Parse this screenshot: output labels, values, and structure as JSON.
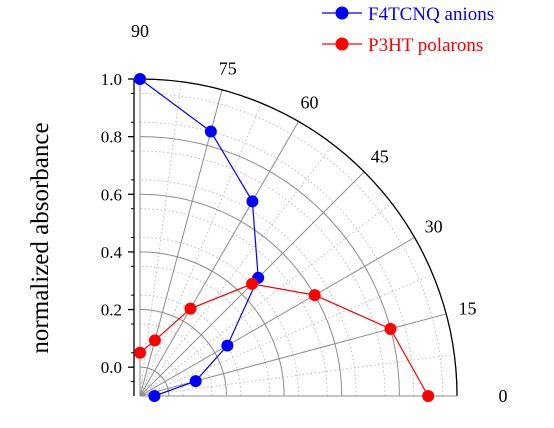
{
  "chart_data": {
    "type": "scatter",
    "coordinate_system": "polar",
    "angle_unit": "degrees",
    "angle_range": [
      0,
      90
    ],
    "radial_axis_label": "normalized absorbance",
    "radial_range": [
      -0.1,
      1.0
    ],
    "radial_ticks": [
      "1.0",
      "0.8",
      "0.6",
      "0.4",
      "0.2",
      "0.0"
    ],
    "radial_tick_values": [
      1.0,
      0.8,
      0.6,
      0.4,
      0.2,
      0.0
    ],
    "minor_radial_values": [
      -0.05,
      0.05,
      0.15,
      0.25,
      0.35,
      0.45,
      0.55,
      0.65,
      0.75,
      0.85,
      0.95
    ],
    "angle_ticks": [
      "90",
      "75",
      "60",
      "45",
      "30",
      "15",
      "0"
    ],
    "angle_tick_values": [
      90,
      75,
      60,
      45,
      30,
      15,
      0
    ],
    "grid": true,
    "legend_position": "top-right",
    "series": [
      {
        "name": "F4TCNQ anions",
        "color": "#0000ff",
        "marker": "circle",
        "angles": [
          0,
          15,
          30,
          45,
          60,
          75,
          90
        ],
        "values": [
          -0.05,
          0.1,
          0.25,
          0.48,
          0.68,
          0.85,
          1.0
        ]
      },
      {
        "name": "P3HT polarons",
        "color": "#ff0000",
        "marker": "circle",
        "angles": [
          0,
          15,
          30,
          45,
          60,
          75,
          90
        ],
        "values": [
          0.9,
          0.8,
          0.6,
          0.45,
          0.25,
          0.1,
          0.05
        ]
      }
    ]
  }
}
